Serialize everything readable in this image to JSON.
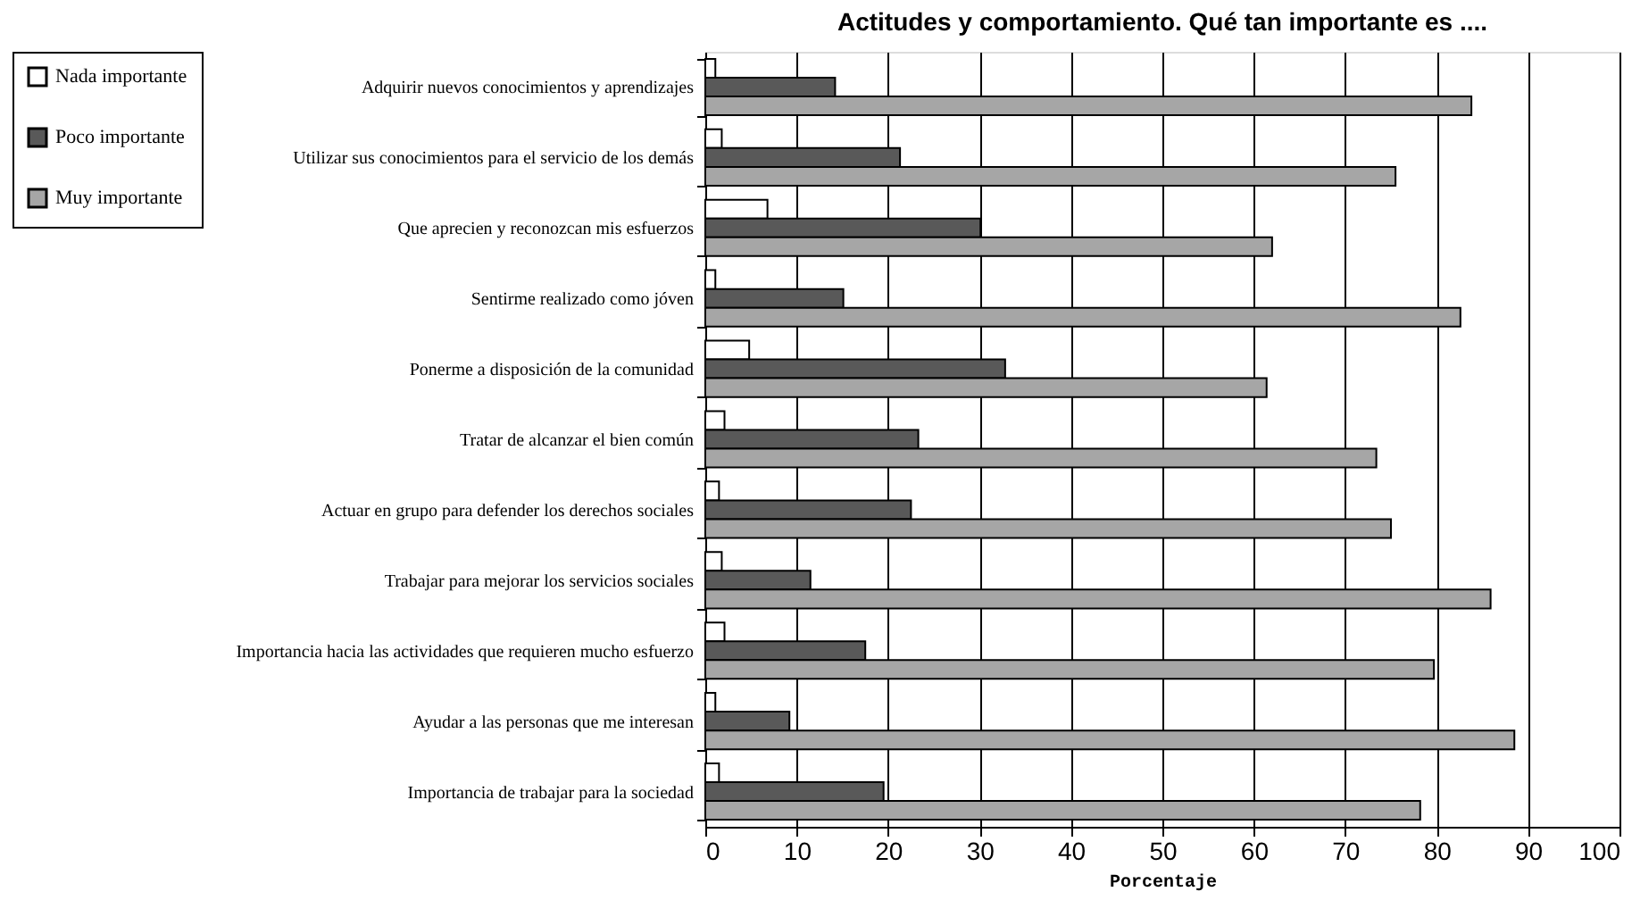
{
  "chart_data": {
    "type": "bar",
    "orientation": "horizontal",
    "title": "Actitudes y comportamiento. Qué tan importante es ....",
    "xlabel": "Porcentaje",
    "categories": [
      "Adquirir nuevos conocimientos y aprendizajes",
      "Utilizar sus conocimientos para el servicio de los demás",
      "Que aprecien y reconozcan mis esfuerzos",
      "Sentirme realizado como jóven",
      "Ponerme a disposición de la comunidad",
      "Tratar de alcanzar el bien común",
      "Actuar en grupo para defender los derechos sociales",
      "Trabajar para mejorar los servicios sociales",
      "Importancia hacia las actividades que requieren mucho esfuerzo",
      "Ayudar a las personas que me interesan",
      "Importancia de trabajar para la sociedad"
    ],
    "series": [
      {
        "name": "Nada importante",
        "color": "#ffffff",
        "values": [
          1.1,
          1.8,
          6.8,
          1.1,
          4.8,
          2.1,
          1.5,
          1.8,
          2.1,
          1.1,
          1.5
        ]
      },
      {
        "name": "Poco importante",
        "color": "#595959",
        "values": [
          14.2,
          21.3,
          30.1,
          15.1,
          32.8,
          23.3,
          22.5,
          11.5,
          17.5,
          9.2,
          19.5
        ]
      },
      {
        "name": "Muy importante",
        "color": "#a6a6a6",
        "values": [
          83.8,
          75.5,
          62.0,
          82.6,
          61.4,
          73.4,
          75.0,
          85.9,
          79.7,
          88.5,
          78.2
        ]
      }
    ],
    "xlim": [
      0,
      100
    ],
    "xticks": [
      0,
      10,
      20,
      30,
      40,
      50,
      60,
      70,
      80,
      90,
      100
    ],
    "grid": "x",
    "legend": "left"
  }
}
